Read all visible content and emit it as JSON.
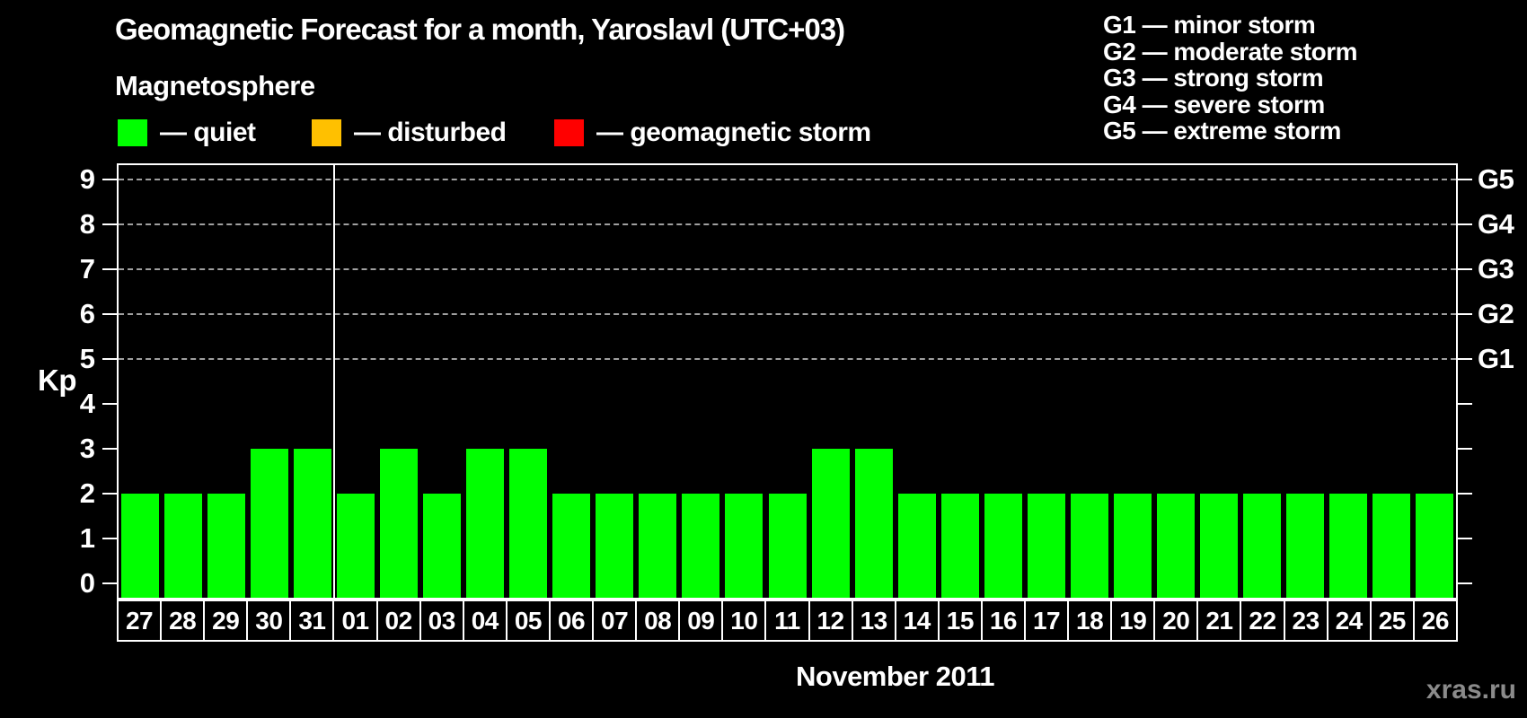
{
  "title": "Geomagnetic Forecast for a month, Yaroslavl (UTC+03)",
  "legend": {
    "heading": "Magnetosphere",
    "items": [
      {
        "name": "quiet",
        "label": "— quiet",
        "color": "#00ff00"
      },
      {
        "name": "disturbed",
        "label": "— disturbed",
        "color": "#ffc000"
      },
      {
        "name": "storm",
        "label": "— geomagnetic storm",
        "color": "#ff0000"
      }
    ]
  },
  "g_legend": [
    "G1 — minor storm",
    "G2 — moderate storm",
    "G3 — strong storm",
    "G4 — severe storm",
    "G5 — extreme storm"
  ],
  "watermark": "xras.ru",
  "chart_data": {
    "type": "bar",
    "title": "Geomagnetic Forecast for a month, Yaroslavl (UTC+03)",
    "ylabel": "Kp",
    "xlabel": "November 2011",
    "ylim": [
      0,
      9
    ],
    "yticks": [
      0,
      1,
      2,
      3,
      4,
      5,
      6,
      7,
      8,
      9
    ],
    "gridlines_at": [
      5,
      6,
      7,
      8,
      9
    ],
    "grid": "dashed horizontal at G-storm levels only",
    "legend_position": "top",
    "categories": [
      "27",
      "28",
      "29",
      "30",
      "31",
      "01",
      "02",
      "03",
      "04",
      "05",
      "06",
      "07",
      "08",
      "09",
      "10",
      "11",
      "12",
      "13",
      "14",
      "15",
      "16",
      "17",
      "18",
      "19",
      "20",
      "21",
      "22",
      "23",
      "24",
      "25",
      "26"
    ],
    "values": [
      2,
      2,
      2,
      3,
      3,
      2,
      3,
      2,
      3,
      3,
      2,
      2,
      2,
      2,
      2,
      2,
      3,
      3,
      2,
      2,
      2,
      2,
      2,
      2,
      2,
      2,
      2,
      2,
      2,
      2,
      2
    ],
    "day_levels": [
      "quiet",
      "quiet",
      "quiet",
      "quiet",
      "quiet",
      "quiet",
      "quiet",
      "quiet",
      "quiet",
      "quiet",
      "quiet",
      "quiet",
      "quiet",
      "quiet",
      "quiet",
      "quiet",
      "quiet",
      "quiet",
      "quiet",
      "quiet",
      "quiet",
      "quiet",
      "quiet",
      "quiet",
      "quiet",
      "quiet",
      "quiet",
      "quiet",
      "quiet",
      "quiet",
      "quiet"
    ],
    "level_colors": {
      "quiet": "#00ff00",
      "disturbed": "#ffc000",
      "storm": "#ff0000"
    },
    "bar_color": "#00ff00",
    "month_boundary_before_category": "01",
    "right_axis_labels": [
      {
        "label": "G5",
        "kp": 9
      },
      {
        "label": "G4",
        "kp": 8
      },
      {
        "label": "G3",
        "kp": 7
      },
      {
        "label": "G2",
        "kp": 6
      },
      {
        "label": "G1",
        "kp": 5
      }
    ],
    "axis_color": "#ffffff",
    "grid_color": "#a0a0a0",
    "background_color": "#000000"
  }
}
